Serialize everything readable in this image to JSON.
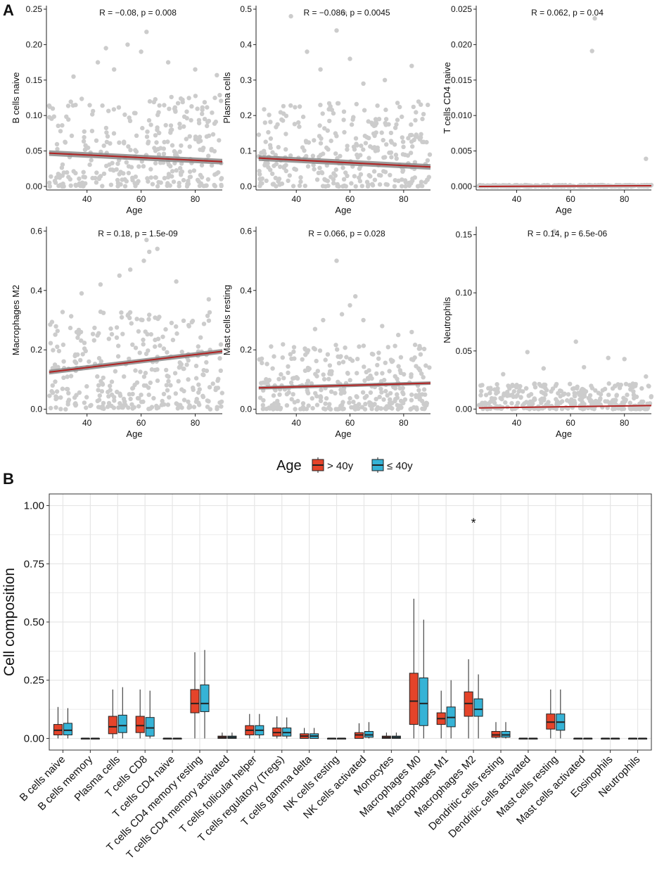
{
  "panel_labels": {
    "a": "A",
    "b": "B"
  },
  "colors": {
    "points": "#cccccc",
    "fit": "#b22222",
    "band": "#8a8a8a",
    "gt40": "#e5442a",
    "le40": "#36b3d6",
    "grid": "#e6e6e6"
  },
  "scatter_stats": [
    "R = −0.08, p = 0.008",
    "R = −0.086, p = 0.0045",
    "R = 0.062, p = 0.04",
    "R = 0.18, p = 1.5e-09",
    "R = 0.066, p = 0.028",
    "R = 0.14, p = 6.5e-06"
  ],
  "legend": {
    "title": "Age",
    "items": [
      "> 40y",
      "≤ 40y"
    ]
  },
  "annotations": {
    "significance": "*"
  },
  "chart_data": [
    {
      "type": "scatter",
      "title": "",
      "xlabel": "Age",
      "ylabel": "B cells naive",
      "xlim": [
        25,
        90
      ],
      "ylim": [
        -0.005,
        0.255
      ],
      "xticks": [
        40,
        60,
        80
      ],
      "yticks": [
        0.0,
        0.05,
        0.1,
        0.15,
        0.2,
        0.25
      ],
      "ytick_labels": [
        "0.00",
        "0.05",
        "0.10",
        "0.15",
        "0.20",
        "0.25"
      ],
      "fit": {
        "x": [
          26,
          90
        ],
        "y": [
          0.047,
          0.035
        ]
      },
      "band": 0.004,
      "point_max": 0.13,
      "outliers": [
        [
          62,
          0.218
        ],
        [
          55,
          0.2
        ],
        [
          47,
          0.195
        ],
        [
          60,
          0.19
        ],
        [
          44,
          0.175
        ],
        [
          50,
          0.165
        ],
        [
          88,
          0.157
        ],
        [
          35,
          0.155
        ],
        [
          70,
          0.175
        ],
        [
          80,
          0.165
        ]
      ],
      "stat_text": "R = −0.08, p = 0.008"
    },
    {
      "type": "scatter",
      "title": "",
      "xlabel": "Age",
      "ylabel": "Plasma cells",
      "xlim": [
        25,
        90
      ],
      "ylim": [
        -0.01,
        0.51
      ],
      "xticks": [
        40,
        60,
        80
      ],
      "yticks": [
        0.0,
        0.1,
        0.2,
        0.3,
        0.4,
        0.5
      ],
      "ytick_labels": [
        "0.0",
        "0.1",
        "0.2",
        "0.3",
        "0.4",
        "0.5"
      ],
      "fit": {
        "x": [
          26,
          90
        ],
        "y": [
          0.08,
          0.055
        ]
      },
      "band": 0.008,
      "point_max": 0.24,
      "outliers": [
        [
          38,
          0.48
        ],
        [
          58,
          0.49
        ],
        [
          55,
          0.44
        ],
        [
          44,
          0.38
        ],
        [
          60,
          0.36
        ],
        [
          73,
          0.3
        ],
        [
          83,
          0.34
        ],
        [
          89,
          0.23
        ],
        [
          49,
          0.33
        ],
        [
          65,
          0.29
        ]
      ],
      "stat_text": "R = −0.086, p = 0.0045"
    },
    {
      "type": "scatter",
      "title": "",
      "xlabel": "Age",
      "ylabel": "T cells CD4 naive",
      "xlim": [
        25,
        90
      ],
      "ylim": [
        -0.0005,
        0.0255
      ],
      "xticks": [
        40,
        60,
        80
      ],
      "yticks": [
        0.0,
        0.005,
        0.01,
        0.015,
        0.02,
        0.025
      ],
      "ytick_labels": [
        "0.000",
        "0.005",
        "0.010",
        "0.015",
        "0.020",
        "0.025"
      ],
      "fit": {
        "x": [
          26,
          90
        ],
        "y": [
          0.0,
          0.0001
        ]
      },
      "band": 5e-05,
      "point_max": 0.0002,
      "outliers": [
        [
          69,
          0.0237
        ],
        [
          68,
          0.0191
        ],
        [
          88,
          0.0039
        ]
      ],
      "stat_text": "R = 0.062, p = 0.04"
    },
    {
      "type": "scatter",
      "title": "",
      "xlabel": "Age",
      "ylabel": "Macrophages M2",
      "xlim": [
        25,
        90
      ],
      "ylim": [
        -0.015,
        0.615
      ],
      "xticks": [
        40,
        60,
        80
      ],
      "yticks": [
        0.0,
        0.2,
        0.4,
        0.6
      ],
      "ytick_labels": [
        "0.0",
        "0.2",
        "0.4",
        "0.6"
      ],
      "fit": {
        "x": [
          26,
          90
        ],
        "y": [
          0.125,
          0.195
        ]
      },
      "band": 0.008,
      "point_max": 0.33,
      "outliers": [
        [
          62,
          0.57
        ],
        [
          63,
          0.53
        ],
        [
          66,
          0.54
        ],
        [
          61,
          0.5
        ],
        [
          56,
          0.47
        ],
        [
          52,
          0.45
        ],
        [
          38,
          0.39
        ],
        [
          45,
          0.42
        ],
        [
          73,
          0.43
        ],
        [
          85,
          0.37
        ]
      ],
      "stat_text": "R = 0.18, p = 1.5e-09"
    },
    {
      "type": "scatter",
      "title": "",
      "xlabel": "Age",
      "ylabel": "Mast cells resting",
      "xlim": [
        25,
        90
      ],
      "ylim": [
        -0.015,
        0.615
      ],
      "xticks": [
        40,
        60,
        80
      ],
      "yticks": [
        0.0,
        0.2,
        0.4,
        0.6
      ],
      "ytick_labels": [
        "0.0",
        "0.2",
        "0.4",
        "0.6"
      ],
      "fit": {
        "x": [
          26,
          90
        ],
        "y": [
          0.072,
          0.088
        ]
      },
      "band": 0.006,
      "point_max": 0.22,
      "outliers": [
        [
          55,
          0.5
        ],
        [
          62,
          0.38
        ],
        [
          60,
          0.35
        ],
        [
          57,
          0.32
        ],
        [
          50,
          0.3
        ],
        [
          65,
          0.3
        ],
        [
          72,
          0.28
        ],
        [
          47,
          0.27
        ],
        [
          78,
          0.25
        ],
        [
          83,
          0.26
        ]
      ],
      "stat_text": "R = 0.066, p = 0.028"
    },
    {
      "type": "scatter",
      "title": "",
      "xlabel": "Age",
      "ylabel": "Neutrophils",
      "xlim": [
        25,
        90
      ],
      "ylim": [
        -0.004,
        0.157
      ],
      "xticks": [
        40,
        60,
        80
      ],
      "yticks": [
        0.0,
        0.05,
        0.1,
        0.15
      ],
      "ytick_labels": [
        "0.00",
        "0.05",
        "0.10",
        "0.15"
      ],
      "fit": {
        "x": [
          26,
          90
        ],
        "y": [
          0.001,
          0.003
        ]
      },
      "band": 0.0005,
      "point_max": 0.022,
      "outliers": [
        [
          54,
          0.153
        ],
        [
          62,
          0.058
        ],
        [
          44,
          0.049
        ],
        [
          74,
          0.044
        ],
        [
          80,
          0.043
        ],
        [
          50,
          0.035
        ],
        [
          65,
          0.036
        ],
        [
          88,
          0.028
        ],
        [
          35,
          0.03
        ]
      ],
      "stat_text": "R = 0.14, p = 6.5e-06"
    },
    {
      "type": "box",
      "title": "",
      "xlabel": "",
      "ylabel": "Cell composition",
      "ylim": [
        -0.05,
        1.05
      ],
      "yticks": [
        0.0,
        0.25,
        0.5,
        0.75,
        1.0
      ],
      "ytick_labels": [
        "0.00",
        "0.25",
        "0.50",
        "0.75",
        "1.00"
      ],
      "categories": [
        "B cells naive",
        "B cells memory",
        "Plasma cells",
        "T cells CD8",
        "T cells CD4 naive",
        "T cells CD4 memory resting",
        "T cells CD4 memory activated",
        "T cells follicular helper",
        "T cells regulatory (Tregs)",
        "T cells gamma delta",
        "NK cells resting",
        "NK cells activated",
        "Monocytes",
        "Macrophages M0",
        "Macrophages M1",
        "Macrophages M2",
        "Dendritic cells resting",
        "Dendritic cells activated",
        "Mast cells resting",
        "Mast cells activated",
        "Eosinophils",
        "Neutrophils"
      ],
      "series": [
        {
          "name": "> 40y",
          "stats": [
            [
              0.0,
              0.015,
              0.035,
              0.06,
              0.135
            ],
            [
              0,
              0,
              0,
              0,
              0
            ],
            [
              0.0,
              0.02,
              0.05,
              0.095,
              0.21
            ],
            [
              0.0,
              0.025,
              0.055,
              0.095,
              0.21
            ],
            [
              0,
              0,
              0,
              0,
              0
            ],
            [
              0.0,
              0.11,
              0.15,
              0.21,
              0.37
            ],
            [
              0.0,
              0.0,
              0.005,
              0.01,
              0.025
            ],
            [
              0.0,
              0.015,
              0.035,
              0.055,
              0.105
            ],
            [
              0.0,
              0.01,
              0.025,
              0.045,
              0.095
            ],
            [
              0.0,
              0.0,
              0.01,
              0.02,
              0.045
            ],
            [
              0,
              0,
              0,
              0,
              0
            ],
            [
              0.0,
              0.0,
              0.015,
              0.025,
              0.065
            ],
            [
              0.0,
              0.0,
              0.005,
              0.01,
              0.025
            ],
            [
              0.0,
              0.06,
              0.16,
              0.28,
              0.6
            ],
            [
              0.0,
              0.06,
              0.085,
              0.11,
              0.205
            ],
            [
              0.0,
              0.095,
              0.15,
              0.2,
              0.34
            ],
            [
              0.0,
              0.005,
              0.015,
              0.03,
              0.07
            ],
            [
              0,
              0,
              0,
              0,
              0
            ],
            [
              0.0,
              0.04,
              0.07,
              0.105,
              0.21
            ],
            [
              0,
              0,
              0,
              0,
              0
            ],
            [
              0,
              0,
              0,
              0,
              0
            ],
            [
              0,
              0,
              0,
              0,
              0
            ]
          ]
        },
        {
          "name": "≤ 40y",
          "stats": [
            [
              0.0,
              0.015,
              0.035,
              0.065,
              0.13
            ],
            [
              0,
              0,
              0,
              0,
              0
            ],
            [
              0.0,
              0.025,
              0.055,
              0.1,
              0.22
            ],
            [
              0.0,
              0.01,
              0.045,
              0.09,
              0.205
            ],
            [
              0,
              0,
              0,
              0,
              0
            ],
            [
              0.0,
              0.115,
              0.15,
              0.23,
              0.38
            ],
            [
              0.0,
              0.0,
              0.005,
              0.01,
              0.025
            ],
            [
              0.0,
              0.015,
              0.035,
              0.055,
              0.105
            ],
            [
              0.0,
              0.01,
              0.025,
              0.045,
              0.09
            ],
            [
              0.0,
              0.0,
              0.01,
              0.02,
              0.045
            ],
            [
              0,
              0,
              0,
              0,
              0
            ],
            [
              0.0,
              0.005,
              0.015,
              0.03,
              0.07
            ],
            [
              0.0,
              0.0,
              0.005,
              0.01,
              0.025
            ],
            [
              0.0,
              0.055,
              0.15,
              0.26,
              0.51
            ],
            [
              0.0,
              0.05,
              0.09,
              0.135,
              0.25
            ],
            [
              0.0,
              0.095,
              0.125,
              0.17,
              0.275
            ],
            [
              0.0,
              0.005,
              0.015,
              0.03,
              0.07
            ],
            [
              0,
              0,
              0,
              0,
              0
            ],
            [
              0.0,
              0.035,
              0.07,
              0.105,
              0.21
            ],
            [
              0,
              0,
              0,
              0,
              0
            ],
            [
              0,
              0,
              0,
              0,
              0
            ],
            [
              0,
              0,
              0,
              0,
              0
            ]
          ]
        }
      ],
      "significant_category": "Macrophages M2",
      "significant_y": 0.93
    }
  ]
}
